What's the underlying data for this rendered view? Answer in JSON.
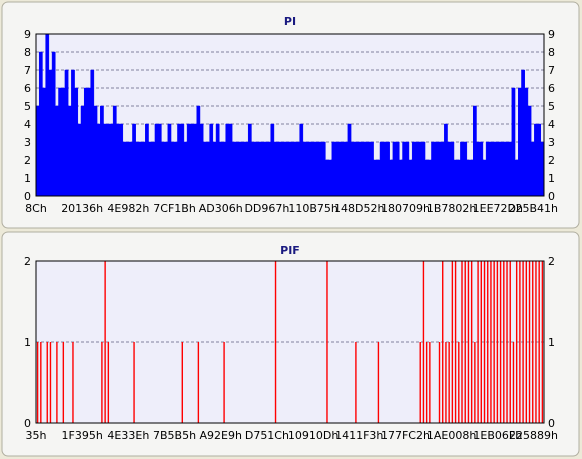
{
  "colors": {
    "window_bg": "#ece9d8",
    "plot_bg": "#eeeefa",
    "pi_series": "#0000ff",
    "pif_series": "#ff0000",
    "title": "#1a1a80"
  },
  "chart_data": [
    {
      "type": "area",
      "title": "PI",
      "ylim": [
        0,
        9
      ],
      "y_ticks": [
        "0",
        "1",
        "2",
        "3",
        "4",
        "5",
        "6",
        "7",
        "8",
        "9"
      ],
      "x_tick_labels": [
        "8Ch",
        "20136h",
        "4E982h",
        "7CF1Bh",
        "AD306h",
        "DD967h",
        "110B75h",
        "148D52h",
        "180709h",
        "1B7802h",
        "1EE72Dh",
        "225B41h"
      ],
      "grid": true,
      "series": [
        {
          "color": "#0000ff",
          "values": [
            5,
            8,
            6,
            9,
            7,
            8,
            5,
            6,
            6,
            7,
            5,
            7,
            6,
            4,
            5,
            6,
            6,
            7,
            5,
            4,
            5,
            4,
            4,
            4,
            5,
            4,
            4,
            3,
            3,
            3,
            4,
            3,
            3,
            3,
            4,
            3,
            3,
            4,
            4,
            3,
            3,
            4,
            3,
            3,
            4,
            4,
            3,
            4,
            4,
            4,
            5,
            4,
            3,
            3,
            4,
            3,
            4,
            3,
            3,
            4,
            4,
            3,
            3,
            3,
            3,
            3,
            4,
            3,
            3,
            3,
            3,
            3,
            3,
            4,
            3,
            3,
            3,
            3,
            3,
            3,
            3,
            3,
            4,
            3,
            3,
            3,
            3,
            3,
            3,
            3,
            2,
            2,
            3,
            3,
            3,
            3,
            3,
            4,
            3,
            3,
            3,
            3,
            3,
            3,
            3,
            2,
            2,
            3,
            3,
            3,
            2,
            3,
            3,
            2,
            3,
            3,
            2,
            3,
            3,
            3,
            3,
            2,
            2,
            3,
            3,
            3,
            3,
            4,
            3,
            3,
            2,
            2,
            3,
            3,
            2,
            2,
            5,
            3,
            3,
            2,
            3,
            3,
            3,
            3,
            3,
            3,
            3,
            3,
            6,
            2,
            6,
            7,
            6,
            5,
            3,
            4,
            4,
            3
          ]
        }
      ]
    },
    {
      "type": "bar",
      "title": "PIF",
      "ylim": [
        0,
        2
      ],
      "y_ticks": [
        "0",
        "1",
        "2"
      ],
      "x_tick_labels": [
        "35h",
        "1F395h",
        "4E33Eh",
        "7B5B5h",
        "A92E9h",
        "D751Ch",
        "10910Dh",
        "1411F3h",
        "177FC2h",
        "1AE008h",
        "1EB06Fh",
        "225889h"
      ],
      "grid": true,
      "series": [
        {
          "color": "#ff0000",
          "values": [
            1,
            1,
            0,
            1,
            1,
            0,
            1,
            0,
            1,
            0,
            0,
            1,
            0,
            0,
            0,
            0,
            0,
            0,
            0,
            0,
            1,
            2,
            1,
            0,
            0,
            0,
            0,
            0,
            0,
            0,
            1,
            0,
            0,
            0,
            0,
            0,
            0,
            0,
            0,
            0,
            0,
            0,
            0,
            0,
            0,
            1,
            0,
            0,
            0,
            0,
            1,
            0,
            0,
            0,
            0,
            0,
            0,
            0,
            1,
            0,
            0,
            0,
            0,
            0,
            0,
            0,
            0,
            0,
            0,
            0,
            0,
            0,
            0,
            0,
            2,
            0,
            0,
            0,
            0,
            0,
            0,
            0,
            0,
            0,
            0,
            0,
            0,
            0,
            0,
            0,
            2,
            0,
            0,
            0,
            0,
            0,
            0,
            0,
            0,
            1,
            0,
            0,
            0,
            0,
            0,
            0,
            1,
            0,
            0,
            0,
            0,
            0,
            0,
            0,
            0,
            0,
            0,
            0,
            0,
            1,
            2,
            1,
            1,
            0,
            0,
            1,
            2,
            1,
            1,
            2,
            2,
            1,
            2,
            2,
            2,
            2,
            1,
            2,
            2,
            2,
            2,
            2,
            2,
            2,
            2,
            2,
            2,
            2,
            1,
            2,
            2,
            2,
            2,
            2,
            2,
            2,
            2,
            2
          ]
        }
      ]
    }
  ]
}
